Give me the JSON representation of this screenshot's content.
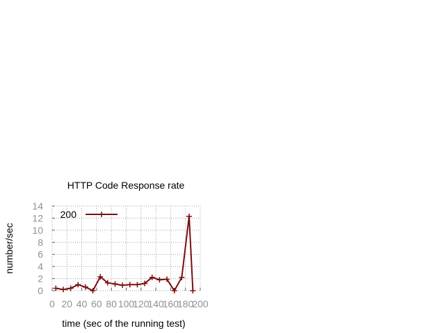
{
  "chart_data": {
    "type": "line",
    "title": "HTTP Code Response rate",
    "xlabel": "time (sec of the running test)",
    "ylabel": "number/sec",
    "xlim": [
      0,
      200
    ],
    "ylim": [
      0,
      14
    ],
    "xticks": [
      "0",
      "20",
      "40",
      "60",
      "80",
      "100",
      "120",
      "140",
      "160",
      "180",
      "200"
    ],
    "yticks": [
      "0",
      "2",
      "4",
      "6",
      "8",
      "10",
      "12",
      "14"
    ],
    "grid": true,
    "legend_position": "top-left",
    "series": [
      {
        "name": "200",
        "color": "#7a0f0f",
        "x": [
          5,
          15,
          25,
          35,
          45,
          55,
          65,
          75,
          85,
          95,
          105,
          115,
          125,
          135,
          145,
          155,
          165,
          175,
          185,
          190
        ],
        "y": [
          0.4,
          0.2,
          0.4,
          1.0,
          0.6,
          0.0,
          2.3,
          1.3,
          1.1,
          0.9,
          1.0,
          1.0,
          1.2,
          2.2,
          1.8,
          1.9,
          0.0,
          2.2,
          12.3,
          0.0
        ]
      }
    ]
  }
}
